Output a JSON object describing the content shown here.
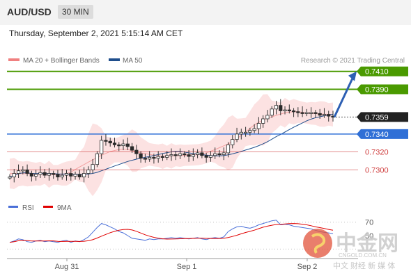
{
  "header": {
    "symbol": "AUD/USD",
    "timeframe": "30 MIN",
    "datetime": "Thursday, September 2, 2021 5:15:14 AM CET"
  },
  "legend": {
    "bb_label": "MA 20 + Bollinger Bands",
    "ma50_label": "MA 50",
    "credit": "Research © 2021 Trading Central",
    "bb_color": "#f08080",
    "ma50_color": "#1f4e8c"
  },
  "rsi_legend": {
    "rsi_label": "RSI",
    "ma_label": "9MA",
    "rsi_color": "#4a6fd8",
    "ma_color": "#e00000"
  },
  "watermark": {
    "text": "中金网",
    "url": "CNGOLD.COM.CN",
    "tagline": "中文 财经 新 媒 体"
  },
  "chart_data": {
    "type": "candlestick",
    "x_ticks": [
      "Aug 31",
      "Sep 1",
      "Sep 2"
    ],
    "price_range": [
      0.7284,
      0.7416
    ],
    "levels": [
      {
        "value": 0.741,
        "label": "0.7410",
        "style": "resistance",
        "color": "#4a9a00"
      },
      {
        "value": 0.739,
        "label": "0.7390",
        "style": "resistance",
        "color": "#4a9a00"
      },
      {
        "value": 0.7359,
        "label": "0.7359",
        "style": "current",
        "color": "#333333"
      },
      {
        "value": 0.734,
        "label": "0.7340",
        "style": "pivot",
        "color": "#2f6fd6"
      },
      {
        "value": 0.732,
        "label": "0.7320",
        "style": "support",
        "color": "#d04040"
      },
      {
        "value": 0.73,
        "label": "0.7300",
        "style": "support",
        "color": "#d04040"
      }
    ],
    "close": [
      0.7292,
      0.7296,
      0.7299,
      0.73,
      0.7296,
      0.7293,
      0.7295,
      0.7297,
      0.7294,
      0.7296,
      0.7295,
      0.7292,
      0.7294,
      0.7296,
      0.7293,
      0.7295,
      0.7292,
      0.7296,
      0.73,
      0.7306,
      0.7318,
      0.7333,
      0.7332,
      0.733,
      0.7328,
      0.7327,
      0.7329,
      0.7326,
      0.7322,
      0.7318,
      0.7313,
      0.7312,
      0.7314,
      0.7313,
      0.7315,
      0.7314,
      0.7316,
      0.7317,
      0.7316,
      0.7318,
      0.7317,
      0.7315,
      0.7317,
      0.7319,
      0.7316,
      0.7314,
      0.7316,
      0.7318,
      0.7317,
      0.7319,
      0.7328,
      0.7334,
      0.734,
      0.7342,
      0.7342,
      0.7344,
      0.7346,
      0.7352,
      0.7357,
      0.7361,
      0.7368,
      0.7372,
      0.7366,
      0.7367,
      0.7366,
      0.7365,
      0.7364,
      0.7363,
      0.7364,
      0.7364,
      0.7363,
      0.7361,
      0.7362,
      0.736,
      0.7359
    ],
    "forecast_target": 0.741,
    "rsi": [
      40,
      42,
      45,
      44,
      41,
      40,
      42,
      43,
      41,
      42,
      41,
      40,
      42,
      43,
      40,
      42,
      41,
      44,
      48,
      55,
      62,
      68,
      66,
      63,
      60,
      56,
      54,
      50,
      46,
      45,
      44,
      43,
      45,
      44,
      45,
      45,
      46,
      47,
      46,
      47,
      46,
      45,
      46,
      47,
      45,
      44,
      46,
      47,
      46,
      48,
      56,
      60,
      63,
      64,
      62,
      61,
      63,
      66,
      68,
      70,
      72,
      73,
      66,
      67,
      66,
      64,
      63,
      62,
      61,
      60,
      58,
      56,
      55,
      54,
      53
    ],
    "rsi_ticks": [
      70,
      50
    ]
  }
}
